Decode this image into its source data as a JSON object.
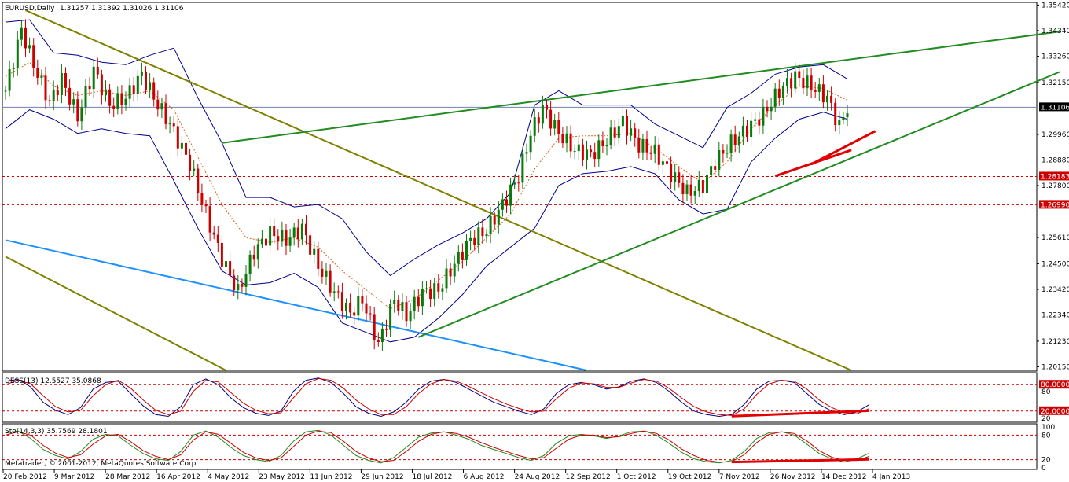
{
  "header": {
    "symbol": "EURUSD,Daily",
    "ohlc": "1.31257 1.31392 1.31026 1.31106"
  },
  "footer": {
    "copyright": "Metatrader, © 2001-2012, MetaQuotes Software Corp."
  },
  "indicators": {
    "des": {
      "label": "DESS(13) 12.5527 35.0868"
    },
    "sto": {
      "label": "Sto(14,3,3) 35.7569 28.1801"
    }
  },
  "colors": {
    "bull": "#0a7a0a",
    "bear": "#cc0000",
    "band": "#00008b",
    "trend_green": "#228b22",
    "trend_olive": "#808000",
    "trend_blue": "#1e90ff",
    "divergence": "#e00000",
    "hline": "#cc0000",
    "current_line": "#00008b"
  },
  "chart_data": [
    {
      "type": "candlestick",
      "title": "EURUSD,Daily",
      "x_ticks": [
        "20 Feb 2012",
        "9 Mar 2012",
        "28 Mar 2012",
        "16 Apr 2012",
        "4 May 2012",
        "23 May 2012",
        "11 Jun 2012",
        "29 Jun 2012",
        "18 Jul 2012",
        "6 Aug 2012",
        "24 Aug 2012",
        "12 Sep 2012",
        "1 Oct 2012",
        "19 Oct 2012",
        "7 Nov 2012",
        "26 Nov 2012",
        "14 Dec 2012",
        "4 Jan 2013"
      ],
      "y_ticks": [
        "1.35420",
        "1.34340",
        "1.33260",
        "1.32150",
        "1.29960",
        "1.28880",
        "1.27800",
        "1.25610",
        "1.24500",
        "1.23420",
        "1.22340",
        "1.21230",
        "1.20150"
      ],
      "ylim": [
        1.2,
        1.355
      ],
      "current_price": "1.31106",
      "horizontal_levels": [
        {
          "label": "1.28183",
          "value": 1.28183
        },
        {
          "label": "1.26990",
          "value": 1.2699
        }
      ],
      "close_path": [
        [
          0,
          1.318
        ],
        [
          4,
          1.344
        ],
        [
          7,
          1.329
        ],
        [
          11,
          1.313
        ],
        [
          14,
          1.323
        ],
        [
          18,
          1.307
        ],
        [
          22,
          1.327
        ],
        [
          26,
          1.312
        ],
        [
          30,
          1.315
        ],
        [
          34,
          1.325
        ],
        [
          38,
          1.312
        ],
        [
          41,
          1.304
        ],
        [
          46,
          1.287
        ],
        [
          50,
          1.266
        ],
        [
          54,
          1.247
        ],
        [
          58,
          1.233
        ],
        [
          62,
          1.25
        ],
        [
          66,
          1.258
        ],
        [
          70,
          1.255
        ],
        [
          74,
          1.26
        ],
        [
          78,
          1.244
        ],
        [
          82,
          1.233
        ],
        [
          86,
          1.224
        ],
        [
          89,
          1.23
        ],
        [
          93,
          1.211
        ],
        [
          97,
          1.23
        ],
        [
          100,
          1.223
        ],
        [
          104,
          1.233
        ],
        [
          108,
          1.234
        ],
        [
          112,
          1.245
        ],
        [
          116,
          1.255
        ],
        [
          120,
          1.259
        ],
        [
          124,
          1.27
        ],
        [
          128,
          1.282
        ],
        [
          131,
          1.3
        ],
        [
          134,
          1.311
        ],
        [
          138,
          1.3
        ],
        [
          142,
          1.293
        ],
        [
          146,
          1.291
        ],
        [
          150,
          1.297
        ],
        [
          154,
          1.305
        ],
        [
          158,
          1.295
        ],
        [
          162,
          1.292
        ],
        [
          166,
          1.283
        ],
        [
          170,
          1.275
        ],
        [
          174,
          1.278
        ],
        [
          177,
          1.288
        ],
        [
          181,
          1.296
        ],
        [
          185,
          1.302
        ],
        [
          189,
          1.308
        ],
        [
          193,
          1.318
        ],
        [
          197,
          1.324
        ],
        [
          201,
          1.32
        ],
        [
          205,
          1.315
        ],
        [
          208,
          1.303
        ],
        [
          210,
          1.311
        ]
      ],
      "bands": {
        "upper": [
          [
            0,
            1.347
          ],
          [
            6,
            1.348
          ],
          [
            12,
            1.334
          ],
          [
            18,
            1.333
          ],
          [
            24,
            1.33
          ],
          [
            30,
            1.329
          ],
          [
            36,
            1.333
          ],
          [
            42,
            1.336
          ],
          [
            48,
            1.315
          ],
          [
            54,
            1.296
          ],
          [
            60,
            1.273
          ],
          [
            66,
            1.273
          ],
          [
            72,
            1.269
          ],
          [
            78,
            1.27
          ],
          [
            84,
            1.264
          ],
          [
            90,
            1.25
          ],
          [
            96,
            1.24
          ],
          [
            102,
            1.247
          ],
          [
            108,
            1.253
          ],
          [
            114,
            1.258
          ],
          [
            120,
            1.264
          ],
          [
            126,
            1.275
          ],
          [
            132,
            1.312
          ],
          [
            138,
            1.318
          ],
          [
            144,
            1.312
          ],
          [
            150,
            1.312
          ],
          [
            156,
            1.312
          ],
          [
            162,
            1.304
          ],
          [
            168,
            1.299
          ],
          [
            174,
            1.294
          ],
          [
            180,
            1.311
          ],
          [
            186,
            1.317
          ],
          [
            192,
            1.325
          ],
          [
            198,
            1.328
          ],
          [
            204,
            1.329
          ],
          [
            210,
            1.323
          ]
        ],
        "mid": [
          [
            0,
            1.324
          ],
          [
            6,
            1.33
          ],
          [
            12,
            1.32
          ],
          [
            18,
            1.316
          ],
          [
            24,
            1.318
          ],
          [
            30,
            1.316
          ],
          [
            36,
            1.318
          ],
          [
            42,
            1.31
          ],
          [
            48,
            1.29
          ],
          [
            54,
            1.27
          ],
          [
            60,
            1.256
          ],
          [
            66,
            1.254
          ],
          [
            72,
            1.256
          ],
          [
            78,
            1.252
          ],
          [
            84,
            1.242
          ],
          [
            90,
            1.234
          ],
          [
            96,
            1.226
          ],
          [
            102,
            1.23
          ],
          [
            108,
            1.238
          ],
          [
            114,
            1.246
          ],
          [
            120,
            1.256
          ],
          [
            126,
            1.266
          ],
          [
            132,
            1.285
          ],
          [
            138,
            1.298
          ],
          [
            144,
            1.299
          ],
          [
            150,
            1.299
          ],
          [
            156,
            1.3
          ],
          [
            162,
            1.294
          ],
          [
            168,
            1.286
          ],
          [
            174,
            1.279
          ],
          [
            180,
            1.288
          ],
          [
            186,
            1.302
          ],
          [
            192,
            1.312
          ],
          [
            198,
            1.32
          ],
          [
            204,
            1.319
          ],
          [
            210,
            1.314
          ]
        ],
        "lower": [
          [
            0,
            1.302
          ],
          [
            6,
            1.31
          ],
          [
            12,
            1.306
          ],
          [
            18,
            1.3
          ],
          [
            24,
            1.302
          ],
          [
            30,
            1.3
          ],
          [
            36,
            1.299
          ],
          [
            42,
            1.28
          ],
          [
            48,
            1.26
          ],
          [
            54,
            1.242
          ],
          [
            60,
            1.236
          ],
          [
            66,
            1.237
          ],
          [
            72,
            1.241
          ],
          [
            78,
            1.235
          ],
          [
            84,
            1.22
          ],
          [
            90,
            1.216
          ],
          [
            96,
            1.212
          ],
          [
            102,
            1.214
          ],
          [
            108,
            1.222
          ],
          [
            114,
            1.232
          ],
          [
            120,
            1.244
          ],
          [
            126,
            1.252
          ],
          [
            132,
            1.26
          ],
          [
            138,
            1.278
          ],
          [
            144,
            1.283
          ],
          [
            150,
            1.284
          ],
          [
            156,
            1.286
          ],
          [
            162,
            1.283
          ],
          [
            168,
            1.272
          ],
          [
            174,
            1.266
          ],
          [
            180,
            1.268
          ],
          [
            186,
            1.288
          ],
          [
            192,
            1.298
          ],
          [
            198,
            1.306
          ],
          [
            204,
            1.309
          ],
          [
            210,
            1.306
          ]
        ]
      },
      "trend_lines": [
        {
          "color": "trend_olive",
          "from": [
            5,
            1.352
          ],
          "to": [
            211,
            1.2
          ]
        },
        {
          "color": "trend_olive",
          "from": [
            0,
            1.248
          ],
          "to": [
            55,
            1.2
          ]
        },
        {
          "color": "trend_blue",
          "from": [
            0,
            1.255
          ],
          "to": [
            145,
            1.2
          ]
        },
        {
          "color": "trend_green",
          "from": [
            54,
            1.296
          ],
          "to": [
            263,
            1.343
          ]
        },
        {
          "color": "trend_green",
          "from": [
            103,
            1.214
          ],
          "to": [
            263,
            1.326
          ]
        }
      ],
      "divergence_lines": [
        {
          "from": [
            192,
            1.282
          ],
          "to": [
            211,
            1.293
          ]
        },
        {
          "from": [
            201,
            1.287
          ],
          "to": [
            217,
            1.301
          ]
        }
      ]
    },
    {
      "type": "line",
      "title": "DESS(13) 12.5527 35.0868",
      "ylim": [
        0,
        100
      ],
      "levels": [
        {
          "label": "80.0000",
          "value": 80
        },
        {
          "label": "20.0000",
          "value": 20
        }
      ],
      "axis_labels": [
        "80",
        "20"
      ],
      "series": [
        {
          "name": "main",
          "color": "#000080",
          "values": [
            88,
            92,
            75,
            40,
            22,
            12,
            28,
            70,
            85,
            88,
            60,
            32,
            12,
            8,
            30,
            80,
            93,
            80,
            50,
            28,
            15,
            10,
            20,
            65,
            90,
            95,
            85,
            60,
            30,
            15,
            8,
            18,
            40,
            70,
            88,
            92,
            85,
            70,
            55,
            40,
            30,
            20,
            12,
            25,
            60,
            80,
            85,
            80,
            70,
            75,
            88,
            93,
            85,
            65,
            40,
            20,
            12,
            8,
            12,
            35,
            70,
            88,
            90,
            85,
            60,
            35,
            20,
            12,
            18,
            35
          ]
        },
        {
          "name": "signal",
          "color": "#cc0000",
          "values": [
            80,
            90,
            82,
            55,
            30,
            18,
            22,
            55,
            80,
            90,
            72,
            45,
            22,
            12,
            20,
            65,
            90,
            86,
            62,
            38,
            22,
            14,
            16,
            50,
            82,
            94,
            90,
            72,
            45,
            25,
            12,
            12,
            30,
            60,
            82,
            92,
            88,
            76,
            62,
            48,
            36,
            26,
            18,
            20,
            48,
            72,
            84,
            82,
            74,
            74,
            84,
            92,
            88,
            72,
            50,
            30,
            18,
            12,
            10,
            25,
            58,
            82,
            90,
            88,
            70,
            45,
            28,
            16,
            14,
            26
          ]
        }
      ],
      "divergence": {
        "from_index": 58,
        "to_index": 69
      }
    },
    {
      "type": "line",
      "title": "Sto(14,3,3) 35.7569 28.1801",
      "ylim": [
        0,
        100
      ],
      "levels": [
        {
          "label": "80",
          "value": 80
        },
        {
          "label": "20",
          "value": 20
        }
      ],
      "axis_labels": [
        "100",
        "80",
        "20",
        "0"
      ],
      "series": [
        {
          "name": "main",
          "color": "#228b22",
          "values": [
            85,
            90,
            72,
            45,
            30,
            22,
            40,
            70,
            82,
            78,
            55,
            35,
            22,
            18,
            40,
            80,
            90,
            75,
            50,
            30,
            20,
            15,
            30,
            65,
            88,
            92,
            80,
            55,
            30,
            18,
            12,
            25,
            50,
            75,
            85,
            88,
            80,
            70,
            55,
            45,
            35,
            25,
            18,
            30,
            60,
            78,
            82,
            78,
            72,
            78,
            88,
            90,
            80,
            60,
            38,
            22,
            15,
            12,
            18,
            40,
            72,
            86,
            88,
            80,
            58,
            35,
            22,
            14,
            22,
            36
          ]
        },
        {
          "name": "signal",
          "color": "#cc0000",
          "values": [
            80,
            88,
            80,
            55,
            36,
            25,
            32,
            58,
            78,
            82,
            64,
            42,
            28,
            20,
            32,
            68,
            88,
            82,
            60,
            38,
            24,
            18,
            24,
            52,
            80,
            90,
            86,
            65,
            40,
            24,
            15,
            18,
            40,
            65,
            82,
            88,
            84,
            75,
            62,
            50,
            40,
            30,
            22,
            25,
            48,
            70,
            80,
            80,
            74,
            76,
            84,
            90,
            84,
            68,
            46,
            30,
            18,
            14,
            15,
            32,
            62,
            82,
            88,
            84,
            66,
            42,
            26,
            18,
            18,
            28
          ]
        }
      ],
      "divergence": {
        "from_index": 58,
        "to_index": 69
      }
    }
  ]
}
